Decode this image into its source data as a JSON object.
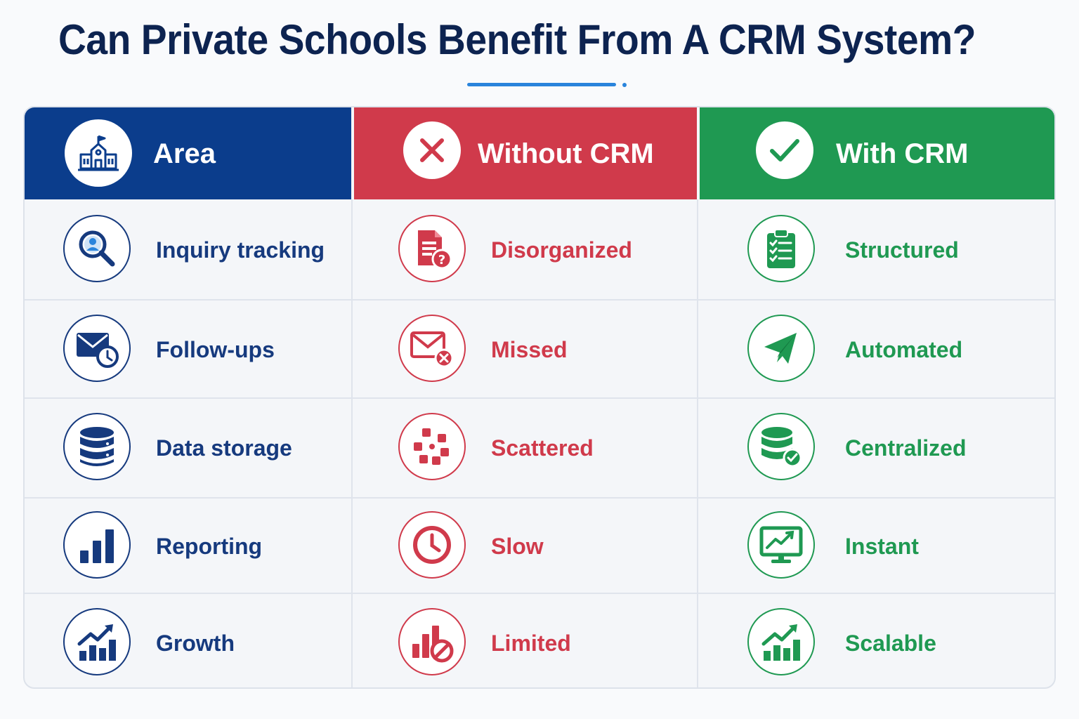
{
  "title": "Can Private Schools Benefit From A CRM System?",
  "colors": {
    "area": "#0b3d8c",
    "without": "#d03a4b",
    "with": "#1f9952",
    "title": "#0d2350",
    "accent": "#2a84dc"
  },
  "headers": {
    "area": {
      "label": "Area",
      "icon": "school-icon"
    },
    "without": {
      "label": "Without CRM",
      "icon": "x-icon"
    },
    "with": {
      "label": "With CRM",
      "icon": "check-icon"
    }
  },
  "rows": [
    {
      "area": "Inquiry tracking",
      "area_icon": "search-user-icon",
      "without": "Disorganized",
      "without_icon": "document-question-icon",
      "with": "Structured",
      "with_icon": "checklist-clipboard-icon"
    },
    {
      "area": "Follow-ups",
      "area_icon": "mail-clock-icon",
      "without": "Missed",
      "without_icon": "mail-x-icon",
      "with": "Automated",
      "with_icon": "paper-plane-icon"
    },
    {
      "area": "Data storage",
      "area_icon": "database-icon",
      "without": "Scattered",
      "without_icon": "scattered-squares-icon",
      "with": "Centralized",
      "with_icon": "database-check-icon"
    },
    {
      "area": "Reporting",
      "area_icon": "bar-chart-icon",
      "without": "Slow",
      "without_icon": "clock-icon",
      "with": "Instant",
      "with_icon": "monitor-chart-icon"
    },
    {
      "area": "Growth",
      "area_icon": "growth-chart-icon",
      "without": "Limited",
      "without_icon": "chart-blocked-icon",
      "with": "Scalable",
      "with_icon": "growth-chart-icon"
    }
  ]
}
